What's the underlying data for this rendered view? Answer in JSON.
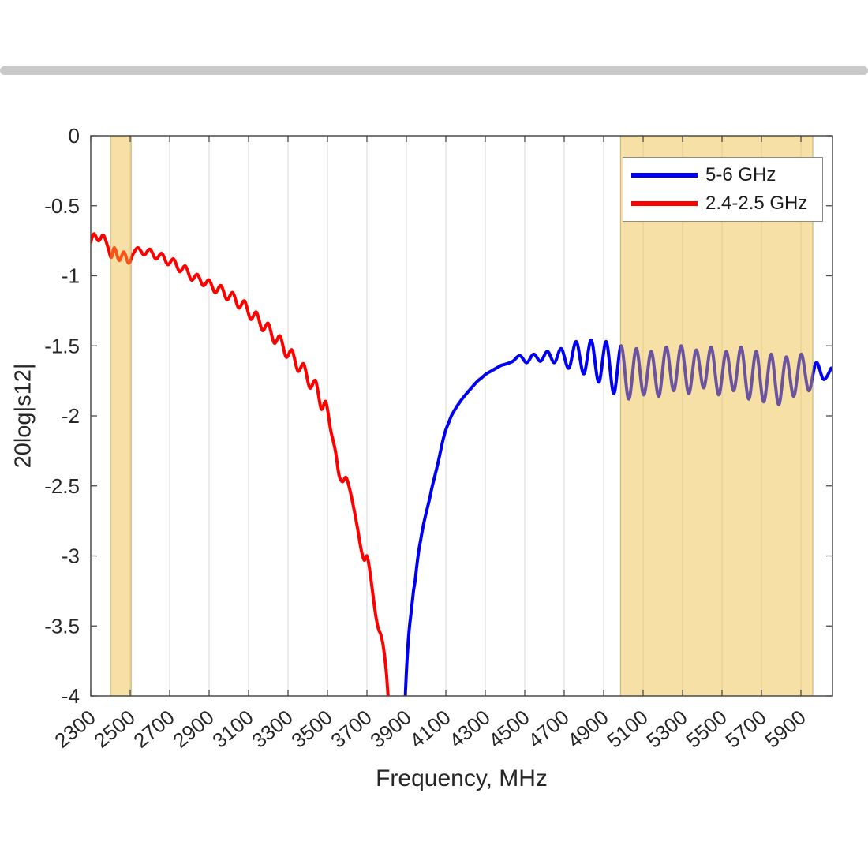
{
  "page": {
    "top_bar_color": "#c9c9c9",
    "background": "#ffffff"
  },
  "chart_data": {
    "type": "line",
    "title": "",
    "xlabel": "Frequency, MHz",
    "ylabel": "20log|s12|",
    "xlim": [
      2300,
      6060
    ],
    "ylim": [
      -4,
      0
    ],
    "grid": "vertical",
    "grid_color": "#d9d9d9",
    "axis_color": "#4a4a4a",
    "tick_label_color": "#262626",
    "xticks": [
      2300,
      2500,
      2700,
      2900,
      3100,
      3300,
      3500,
      3700,
      3900,
      4100,
      4300,
      4500,
      4700,
      4900,
      5100,
      5300,
      5500,
      5700,
      5900
    ],
    "yticks": [
      0,
      -0.5,
      -1,
      -1.5,
      -2,
      -2.5,
      -3,
      -3.5,
      -4
    ],
    "ytick_labels": [
      "0",
      "-0.5",
      "-1",
      "-1.5",
      "-2",
      "-2.5",
      "-3",
      "-3.5",
      "-4"
    ],
    "bands": [
      {
        "x1": 2400,
        "x2": 2505,
        "color": "#edba37",
        "alpha": 0.45
      },
      {
        "x1": 4985,
        "x2": 5960,
        "color": "#edba37",
        "alpha": 0.45
      }
    ],
    "legend": {
      "position": "northeast",
      "entries": [
        {
          "label": "5-6 GHz",
          "color": "#0000f0"
        },
        {
          "label": "2.4-2.5 GHz",
          "color": "#ff0000"
        }
      ]
    },
    "series": [
      {
        "name": "5-6 GHz",
        "color": "#0000f0",
        "width": 4,
        "points": [
          [
            3893,
            -4.05
          ],
          [
            3900,
            -3.83
          ],
          [
            3908,
            -3.64
          ],
          [
            3916,
            -3.5
          ],
          [
            3926,
            -3.38
          ],
          [
            3936,
            -3.25
          ],
          [
            3944,
            -3.18
          ],
          [
            3952,
            -3.08
          ],
          [
            3962,
            -2.97
          ],
          [
            3972,
            -2.89
          ],
          [
            3982,
            -2.81
          ],
          [
            3994,
            -2.73
          ],
          [
            4006,
            -2.66
          ],
          [
            4018,
            -2.59
          ],
          [
            4030,
            -2.51
          ],
          [
            4044,
            -2.43
          ],
          [
            4058,
            -2.35
          ],
          [
            4072,
            -2.26
          ],
          [
            4086,
            -2.17
          ],
          [
            4100,
            -2.1
          ],
          [
            4114,
            -2.05
          ],
          [
            4128,
            -2.0
          ],
          [
            4144,
            -1.96
          ],
          [
            4162,
            -1.92
          ],
          [
            4182,
            -1.88
          ],
          [
            4205,
            -1.84
          ],
          [
            4230,
            -1.8
          ],
          [
            4255,
            -1.76
          ],
          [
            4280,
            -1.73
          ],
          [
            4305,
            -1.7
          ],
          [
            4330,
            -1.68
          ],
          [
            4355,
            -1.66
          ],
          [
            4380,
            -1.64
          ],
          [
            4405,
            -1.63
          ],
          [
            4440,
            -1.61
          ],
          [
            4475,
            -1.57
          ],
          [
            4510,
            -1.62
          ],
          [
            4545,
            -1.56
          ],
          [
            4580,
            -1.61
          ],
          [
            4615,
            -1.54
          ],
          [
            4650,
            -1.62
          ],
          [
            4685,
            -1.52
          ],
          [
            4723,
            -1.66
          ],
          [
            4761,
            -1.47
          ],
          [
            4799,
            -1.7
          ],
          [
            4837,
            -1.46
          ],
          [
            4875,
            -1.76
          ],
          [
            4913,
            -1.47
          ],
          [
            4951,
            -1.84
          ],
          [
            4989,
            -1.5
          ],
          [
            5027,
            -1.88
          ],
          [
            5065,
            -1.52
          ],
          [
            5103,
            -1.85
          ],
          [
            5141,
            -1.54
          ],
          [
            5179,
            -1.86
          ],
          [
            5217,
            -1.51
          ],
          [
            5255,
            -1.82
          ],
          [
            5293,
            -1.5
          ],
          [
            5331,
            -1.84
          ],
          [
            5369,
            -1.53
          ],
          [
            5407,
            -1.8
          ],
          [
            5445,
            -1.51
          ],
          [
            5483,
            -1.85
          ],
          [
            5521,
            -1.54
          ],
          [
            5559,
            -1.82
          ],
          [
            5597,
            -1.51
          ],
          [
            5635,
            -1.88
          ],
          [
            5673,
            -1.54
          ],
          [
            5711,
            -1.9
          ],
          [
            5749,
            -1.56
          ],
          [
            5787,
            -1.92
          ],
          [
            5825,
            -1.58
          ],
          [
            5863,
            -1.86
          ],
          [
            5901,
            -1.56
          ],
          [
            5939,
            -1.82
          ],
          [
            5977,
            -1.62
          ],
          [
            6015,
            -1.74
          ],
          [
            6053,
            -1.66
          ]
        ]
      },
      {
        "name": "2.4-2.5 GHz",
        "color": "#ff0000",
        "width": 4,
        "points": [
          [
            2300,
            -0.76
          ],
          [
            2316,
            -0.7
          ],
          [
            2340,
            -0.75
          ],
          [
            2364,
            -0.71
          ],
          [
            2388,
            -0.8
          ],
          [
            2404,
            -0.87
          ],
          [
            2420,
            -0.8
          ],
          [
            2444,
            -0.89
          ],
          [
            2468,
            -0.83
          ],
          [
            2492,
            -0.91
          ],
          [
            2516,
            -0.84
          ],
          [
            2540,
            -0.8
          ],
          [
            2570,
            -0.85
          ],
          [
            2600,
            -0.81
          ],
          [
            2630,
            -0.88
          ],
          [
            2660,
            -0.84
          ],
          [
            2690,
            -0.92
          ],
          [
            2720,
            -0.88
          ],
          [
            2750,
            -0.97
          ],
          [
            2780,
            -0.93
          ],
          [
            2810,
            -1.03
          ],
          [
            2840,
            -0.99
          ],
          [
            2870,
            -1.07
          ],
          [
            2900,
            -1.03
          ],
          [
            2930,
            -1.12
          ],
          [
            2960,
            -1.07
          ],
          [
            2990,
            -1.17
          ],
          [
            3020,
            -1.12
          ],
          [
            3050,
            -1.23
          ],
          [
            3080,
            -1.18
          ],
          [
            3110,
            -1.31
          ],
          [
            3140,
            -1.26
          ],
          [
            3170,
            -1.39
          ],
          [
            3200,
            -1.34
          ],
          [
            3230,
            -1.48
          ],
          [
            3260,
            -1.43
          ],
          [
            3290,
            -1.58
          ],
          [
            3320,
            -1.53
          ],
          [
            3350,
            -1.68
          ],
          [
            3380,
            -1.63
          ],
          [
            3410,
            -1.8
          ],
          [
            3440,
            -1.75
          ],
          [
            3468,
            -1.95
          ],
          [
            3492,
            -1.9
          ],
          [
            3516,
            -2.1
          ],
          [
            3540,
            -2.25
          ],
          [
            3558,
            -2.42
          ],
          [
            3576,
            -2.47
          ],
          [
            3594,
            -2.44
          ],
          [
            3612,
            -2.52
          ],
          [
            3632,
            -2.65
          ],
          [
            3652,
            -2.8
          ],
          [
            3670,
            -2.95
          ],
          [
            3686,
            -3.03
          ],
          [
            3700,
            -3.0
          ],
          [
            3712,
            -3.08
          ],
          [
            3728,
            -3.25
          ],
          [
            3744,
            -3.42
          ],
          [
            3758,
            -3.52
          ],
          [
            3770,
            -3.56
          ],
          [
            3780,
            -3.62
          ],
          [
            3790,
            -3.72
          ],
          [
            3800,
            -3.86
          ],
          [
            3810,
            -4.06
          ]
        ]
      }
    ]
  }
}
